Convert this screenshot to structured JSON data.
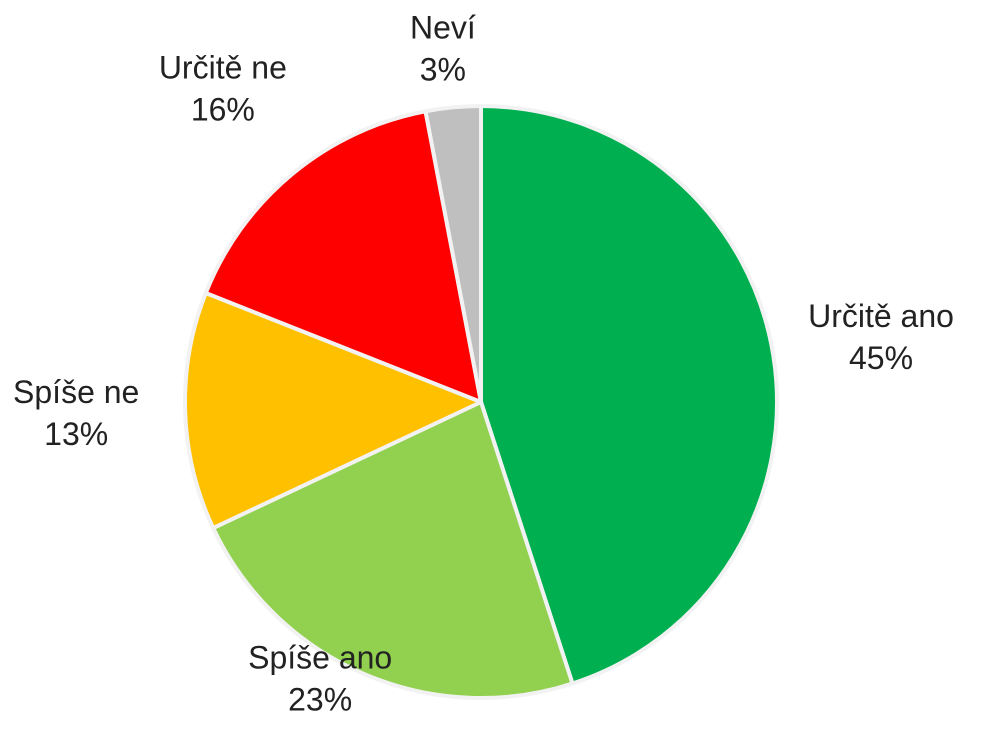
{
  "chart_data": {
    "type": "pie",
    "categories": [
      "Určitě ano",
      "Spíše ano",
      "Spíše ne",
      "Určitě ne",
      "Neví"
    ],
    "values": [
      45,
      23,
      13,
      16,
      3
    ],
    "value_labels": [
      "45%",
      "23%",
      "13%",
      "16%",
      "3%"
    ],
    "colors": [
      "#00b050",
      "#92d050",
      "#ffc000",
      "#ff0000",
      "#bfbfbf"
    ]
  }
}
